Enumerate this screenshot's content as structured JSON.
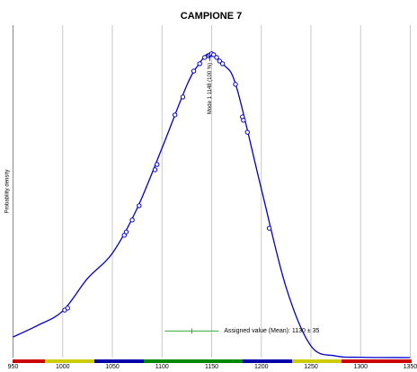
{
  "chart_data": {
    "type": "line",
    "title": "CAMPIONE 7",
    "y_label": "Probability density",
    "xlim": [
      950,
      1350
    ],
    "xticks": [
      950,
      1000,
      1050,
      1100,
      1150,
      1200,
      1250,
      1300,
      1350
    ],
    "ylim": [
      0,
      1
    ],
    "grid": true,
    "color": "#0000cc",
    "curve": {
      "x": [
        950,
        975,
        1000,
        1025,
        1050,
        1075,
        1100,
        1125,
        1137.5,
        1148,
        1162.5,
        1175,
        1200,
        1225,
        1250,
        1275,
        1300,
        1350
      ],
      "y": [
        0.062,
        0.097,
        0.14,
        0.238,
        0.314,
        0.449,
        0.63,
        0.819,
        0.884,
        0.914,
        0.88,
        0.814,
        0.508,
        0.211,
        0.035,
        0.005,
        0.001,
        0
      ]
    },
    "points": {
      "x": [
        1002,
        1005,
        1062,
        1064,
        1070,
        1077,
        1093,
        1095,
        1113,
        1121,
        1132,
        1138,
        1143,
        1147,
        1148.5,
        1150,
        1152,
        1155,
        1158,
        1161,
        1174,
        1181,
        1182,
        1186,
        1208
      ],
      "y": [
        0.143,
        0.149,
        0.368,
        0.378,
        0.414,
        0.457,
        0.565,
        0.581,
        0.73,
        0.784,
        0.862,
        0.884,
        0.903,
        0.908,
        0.911,
        0.914,
        0.911,
        0.903,
        0.892,
        0.884,
        0.822,
        0.724,
        0.714,
        0.678,
        0.389
      ]
    },
    "mode_annotation": {
      "label": "Mode 1 1148 (100 %)",
      "x": 1148,
      "y": 0.914
    },
    "assigned_value": {
      "label": "Assigned value (Mean): 1130 ± 35",
      "x": 1130,
      "y": 0.08,
      "color": "#33aa33"
    }
  }
}
